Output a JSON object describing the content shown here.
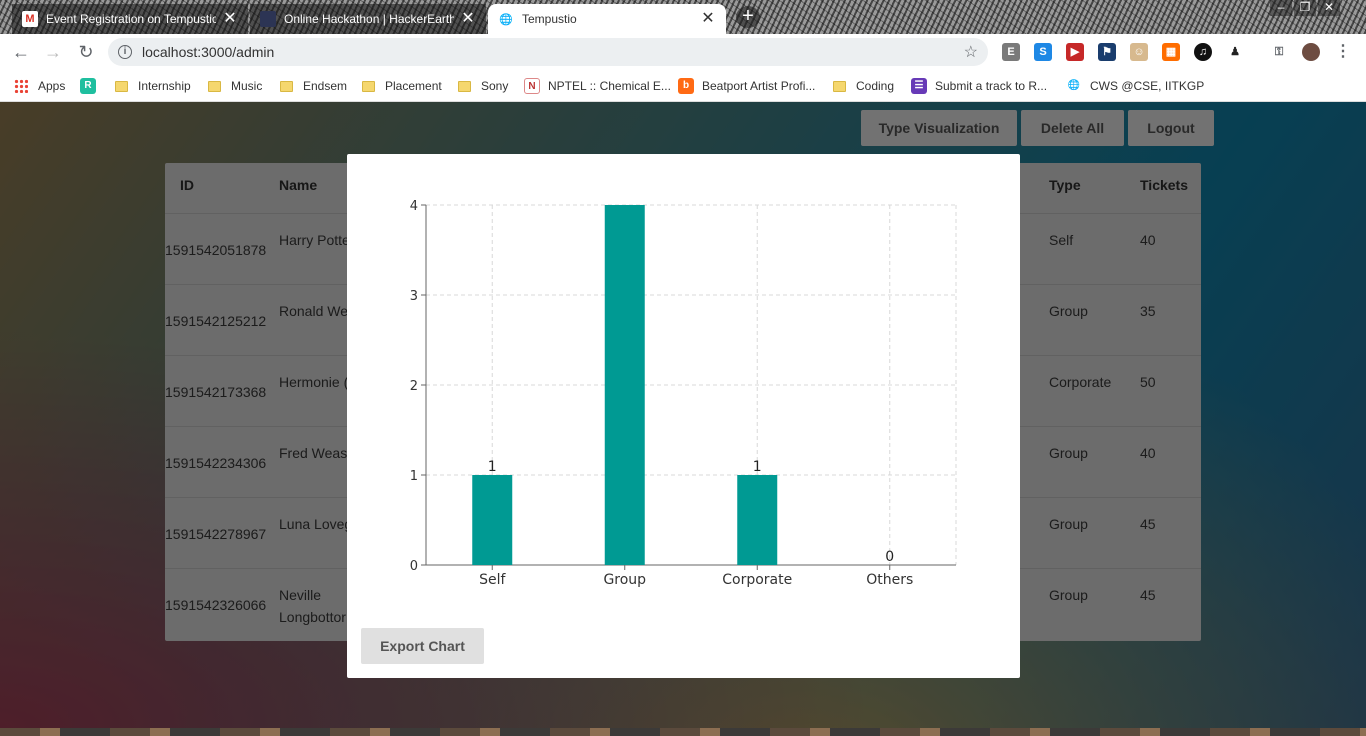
{
  "browser": {
    "tabs": [
      {
        "title": "Event Registration on Tempustio",
        "icon": "gmail-icon"
      },
      {
        "title": "Online Hackathon | HackerEarth",
        "icon": "hackerearth-icon"
      },
      {
        "title": "Tempustio",
        "icon": "globe-icon",
        "active": true
      }
    ],
    "url": "localhost:3000/admin",
    "bookmarks": [
      {
        "label": "Apps",
        "icon": "apps-icon"
      },
      {
        "label": "",
        "icon": "r-icon"
      },
      {
        "label": "Internship",
        "icon": "folder-icon"
      },
      {
        "label": "Music",
        "icon": "folder-icon"
      },
      {
        "label": "Endsem",
        "icon": "folder-icon"
      },
      {
        "label": "Placement",
        "icon": "folder-icon"
      },
      {
        "label": "Sony",
        "icon": "folder-icon"
      },
      {
        "label": "NPTEL :: Chemical E...",
        "icon": "nptel-icon"
      },
      {
        "label": "Beatport Artist Profi...",
        "icon": "beatport-icon"
      },
      {
        "label": "Coding",
        "icon": "folder-icon"
      },
      {
        "label": "Submit a track to R...",
        "icon": "form-icon"
      },
      {
        "label": "CWS @CSE, IITKGP",
        "icon": "globe-icon"
      }
    ]
  },
  "admin": {
    "buttons": {
      "type_visualization": "Type Visualization",
      "delete_all": "Delete All",
      "logout": "Logout"
    },
    "table": {
      "headers": {
        "id": "ID",
        "name": "Name",
        "type": "Type",
        "tickets": "Tickets"
      },
      "rows": [
        {
          "id": "1591542051878",
          "name": "Harry Potte",
          "type": "Self",
          "tickets": "40"
        },
        {
          "id": "1591542125212",
          "name": "Ronald We",
          "type": "Group",
          "tickets": "35"
        },
        {
          "id": "1591542173368",
          "name": "Hermonie (",
          "type": "Corporate",
          "tickets": "50"
        },
        {
          "id": "1591542234306",
          "name": "Fred Weasl",
          "type": "Group",
          "tickets": "40"
        },
        {
          "id": "1591542278967",
          "name": "Luna Loveg",
          "type": "Group",
          "tickets": "45"
        },
        {
          "id": "1591542326066",
          "name": "Neville Longbottor",
          "type": "Group",
          "tickets": "45"
        }
      ]
    }
  },
  "modal": {
    "export_label": "Export Chart"
  },
  "chart_data": {
    "type": "bar",
    "categories": [
      "Self",
      "Group",
      "Corporate",
      "Others"
    ],
    "values": [
      1,
      4,
      1,
      0
    ],
    "data_labels": [
      "1",
      "",
      "1",
      "0"
    ],
    "ylim": [
      0,
      4
    ],
    "yticks": [
      "0",
      "1",
      "2",
      "3",
      "4"
    ],
    "grid": true,
    "bar_color": "#009a93"
  }
}
